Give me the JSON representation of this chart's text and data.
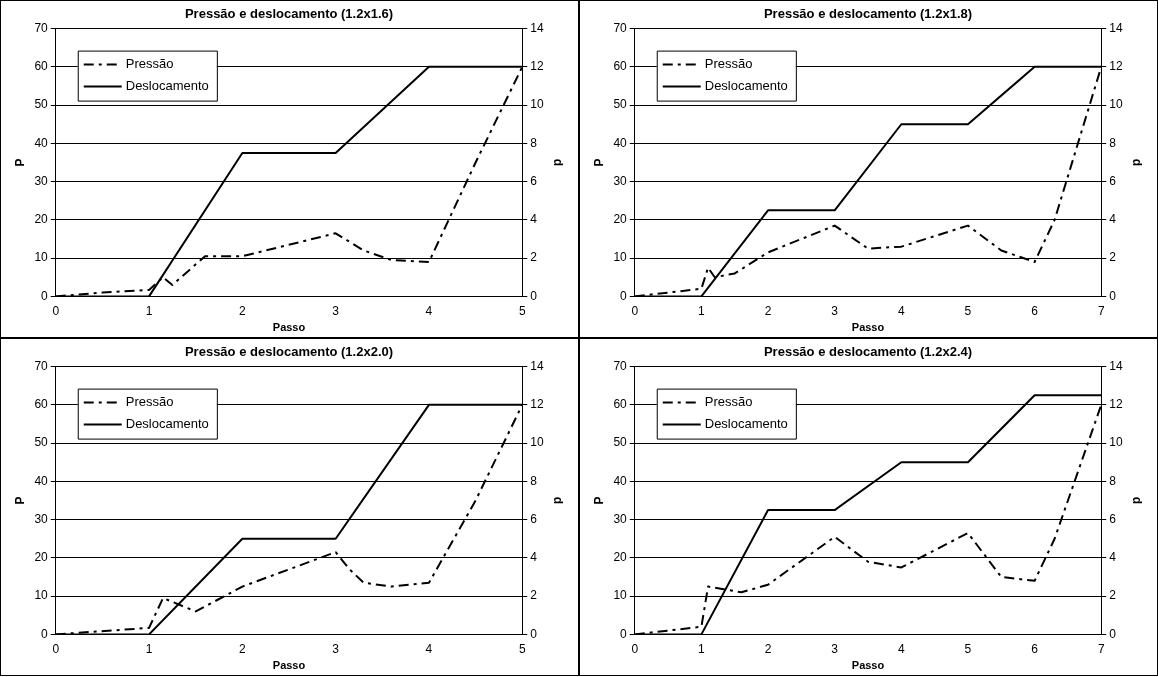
{
  "chart_data": [
    {
      "type": "line",
      "title": "Pressão e deslocamento (1.2x1.6)",
      "xlabel": "Passo",
      "ylabel": "P",
      "y2label": "d",
      "xlim": [
        0,
        5
      ],
      "xticks": [
        0,
        1,
        2,
        3,
        4,
        5
      ],
      "ylim": [
        0,
        70
      ],
      "yticks": [
        0,
        10,
        20,
        30,
        40,
        50,
        60,
        70
      ],
      "y2lim": [
        0,
        14
      ],
      "y2ticks": [
        0,
        2,
        4,
        6,
        8,
        10,
        12,
        14
      ],
      "grid": "y",
      "legend": "top left",
      "marker": "none",
      "series": [
        {
          "name": "Pressão",
          "color": "#000000",
          "line_style": "dashed",
          "x": [
            0,
            0.5,
            1,
            1.15,
            1.25,
            1.6,
            2,
            3,
            3.3,
            3.6,
            4,
            4.5,
            5
          ],
          "values": [
            0,
            1,
            1.7,
            5,
            3,
            10.5,
            10.5,
            16.5,
            12,
            9.5,
            9,
            35,
            60
          ]
        },
        {
          "name": "Deslocamento",
          "color": "#000000",
          "line_style": "solid",
          "axis": "y2",
          "x": [
            0,
            1,
            2,
            3,
            4,
            5
          ],
          "values": [
            0,
            0,
            7.5,
            7.5,
            12,
            12
          ]
        }
      ]
    },
    {
      "type": "line",
      "title": "Pressão e deslocamento (1.2x1.8)",
      "xlabel": "Passo",
      "ylabel": "P",
      "y2label": "d",
      "xlim": [
        0,
        7
      ],
      "xticks": [
        0,
        1,
        2,
        3,
        4,
        5,
        6,
        7
      ],
      "ylim": [
        0,
        70
      ],
      "yticks": [
        0,
        10,
        20,
        30,
        40,
        50,
        60,
        70
      ],
      "y2lim": [
        0,
        14
      ],
      "y2ticks": [
        0,
        2,
        4,
        6,
        8,
        10,
        12,
        14
      ],
      "grid": "y",
      "legend": "top left",
      "marker": "none",
      "series": [
        {
          "name": "Pressão",
          "color": "#000000",
          "line_style": "dashed",
          "x": [
            0,
            1,
            1.1,
            1.2,
            1.5,
            2,
            3,
            3.5,
            4,
            5,
            5.5,
            6,
            6.3,
            7
          ],
          "values": [
            0,
            2,
            7.5,
            5,
            6,
            11.5,
            18.5,
            12.5,
            13,
            18.5,
            12,
            9,
            20,
            60
          ]
        },
        {
          "name": "Deslocamento",
          "color": "#000000",
          "line_style": "solid",
          "axis": "y2",
          "x": [
            0,
            1,
            2,
            3,
            4,
            5,
            6,
            7
          ],
          "values": [
            0,
            0,
            4.5,
            4.5,
            9,
            9,
            12,
            12
          ]
        }
      ]
    },
    {
      "type": "line",
      "title": "Pressão e deslocamento (1.2x2.0)",
      "xlabel": "Passo",
      "ylabel": "P",
      "y2label": "d",
      "xlim": [
        0,
        5
      ],
      "xticks": [
        0,
        1,
        2,
        3,
        4,
        5
      ],
      "ylim": [
        0,
        70
      ],
      "yticks": [
        0,
        10,
        20,
        30,
        40,
        50,
        60,
        70
      ],
      "y2lim": [
        0,
        14
      ],
      "y2ticks": [
        0,
        2,
        4,
        6,
        8,
        10,
        12,
        14
      ],
      "grid": "y",
      "legend": "top left",
      "marker": "none",
      "series": [
        {
          "name": "Pressão",
          "color": "#000000",
          "line_style": "dashed",
          "x": [
            0,
            1,
            1.15,
            1.5,
            2,
            3,
            3.15,
            3.3,
            3.6,
            4,
            4.5,
            5
          ],
          "values": [
            0,
            1.7,
            9.5,
            6,
            12.5,
            21.5,
            17,
            13.5,
            12.5,
            13.5,
            35,
            60
          ]
        },
        {
          "name": "Deslocamento",
          "color": "#000000",
          "line_style": "solid",
          "axis": "y2",
          "x": [
            0,
            1,
            2,
            3,
            4,
            5
          ],
          "values": [
            0,
            0,
            5,
            5,
            12,
            12
          ]
        }
      ]
    },
    {
      "type": "line",
      "title": "Pressão e deslocamento (1.2x2.4)",
      "xlabel": "Passo",
      "ylabel": "P",
      "y2label": "d",
      "xlim": [
        0,
        7
      ],
      "xticks": [
        0,
        1,
        2,
        3,
        4,
        5,
        6,
        7
      ],
      "ylim": [
        0,
        70
      ],
      "yticks": [
        0,
        10,
        20,
        30,
        40,
        50,
        60,
        70
      ],
      "y2lim": [
        0,
        14
      ],
      "y2ticks": [
        0,
        2,
        4,
        6,
        8,
        10,
        12,
        14
      ],
      "grid": "y",
      "legend": "top left",
      "marker": "none",
      "series": [
        {
          "name": "Pressão",
          "color": "#000000",
          "line_style": "dashed",
          "x": [
            0,
            1,
            1.1,
            1.6,
            2,
            3,
            3.5,
            4,
            5,
            5.5,
            6,
            6.3,
            7
          ],
          "values": [
            0,
            2,
            12.5,
            11,
            13,
            25.5,
            19,
            17.5,
            26.5,
            15,
            14,
            25,
            60
          ]
        },
        {
          "name": "Deslocamento",
          "color": "#000000",
          "line_style": "solid",
          "axis": "y2",
          "x": [
            0,
            1,
            2,
            3,
            4,
            5,
            6,
            7
          ],
          "values": [
            0,
            0,
            6.5,
            6.5,
            9,
            9,
            12.5,
            12.5
          ]
        }
      ]
    }
  ]
}
